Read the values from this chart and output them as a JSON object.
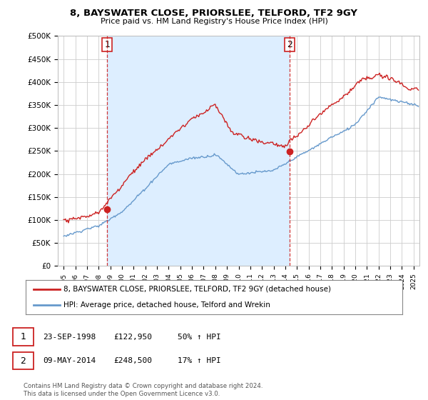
{
  "title": "8, BAYSWATER CLOSE, PRIORSLEE, TELFORD, TF2 9GY",
  "subtitle": "Price paid vs. HM Land Registry's House Price Index (HPI)",
  "ylim": [
    0,
    500000
  ],
  "yticks": [
    0,
    50000,
    100000,
    150000,
    200000,
    250000,
    300000,
    350000,
    400000,
    450000,
    500000
  ],
  "ytick_labels": [
    "£0",
    "£50K",
    "£100K",
    "£150K",
    "£200K",
    "£250K",
    "£300K",
    "£350K",
    "£400K",
    "£450K",
    "£500K"
  ],
  "hpi_color": "#6699cc",
  "price_color": "#cc2222",
  "shade_color": "#ddeeff",
  "sale1_date_num": 1998.73,
  "sale1_price": 122950,
  "sale2_date_num": 2014.36,
  "sale2_price": 248500,
  "legend_price_label": "8, BAYSWATER CLOSE, PRIORSLEE, TELFORD, TF2 9GY (detached house)",
  "legend_hpi_label": "HPI: Average price, detached house, Telford and Wrekin",
  "footnote1": "Contains HM Land Registry data © Crown copyright and database right 2024.",
  "footnote2": "This data is licensed under the Open Government Licence v3.0.",
  "background_color": "#ffffff",
  "grid_color": "#cccccc",
  "xlim_start": 1994.5,
  "xlim_end": 2025.5,
  "xtick_start": 1995,
  "xtick_end": 2025
}
